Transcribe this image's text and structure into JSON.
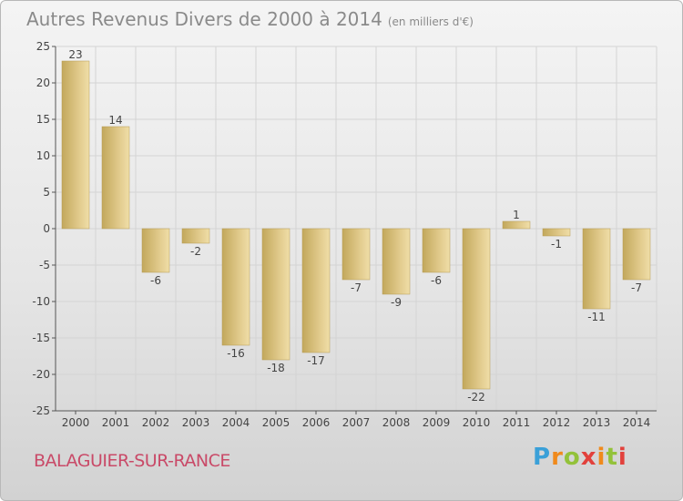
{
  "title": {
    "main": "Autres Revenus Divers de 2000 à 2014",
    "unit": "(en milliers d'€)"
  },
  "city": "BALAGUIER-SUR-RANCE",
  "brand": {
    "letters": [
      "P",
      "r",
      "o",
      "x",
      "i",
      "t",
      "i"
    ],
    "colors": [
      "#3aa0d8",
      "#f08a1c",
      "#93c23a",
      "#e2413c"
    ]
  },
  "chart_data": {
    "type": "bar",
    "categories": [
      "2000",
      "2001",
      "2002",
      "2003",
      "2004",
      "2005",
      "2006",
      "2007",
      "2008",
      "2009",
      "2010",
      "2011",
      "2012",
      "2013",
      "2014"
    ],
    "values": [
      23,
      14,
      -6,
      -2,
      -16,
      -18,
      -17,
      -7,
      -9,
      -6,
      -22,
      1,
      -1,
      -11,
      -7
    ],
    "yticks": [
      25,
      20,
      15,
      10,
      5,
      0,
      -5,
      -10,
      -15,
      -20,
      -25
    ],
    "ylim": [
      -25,
      25
    ],
    "grid": true,
    "bar_color": "#d7bf72"
  }
}
